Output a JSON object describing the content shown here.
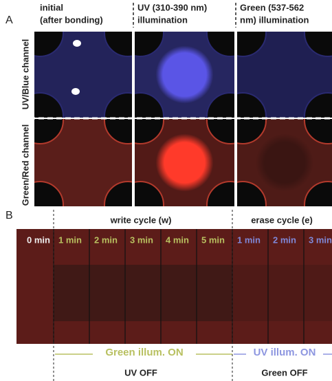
{
  "panel_a": {
    "label": "A",
    "column_headers": [
      [
        "initial",
        "(after bonding)"
      ],
      [
        "UV (310-390 nm)",
        "illumination"
      ],
      [
        "Green (537-562",
        "nm) illumination"
      ]
    ],
    "row_labels": [
      "UV/Blue channel",
      "Green/Red channel"
    ]
  },
  "panel_b": {
    "label": "B",
    "write_cycle": "write cycle (w)",
    "erase_cycle": "erase cycle (e)",
    "time_labels": [
      "0 min",
      "1 min",
      "2 min",
      "3 min",
      "4 min",
      "5 min",
      "1 min",
      "2 min",
      "3 min"
    ],
    "write_illumination": "Green illum. ON",
    "erase_illumination": "UV illum. ON",
    "write_state": "UV OFF",
    "erase_state": "Green OFF"
  }
}
